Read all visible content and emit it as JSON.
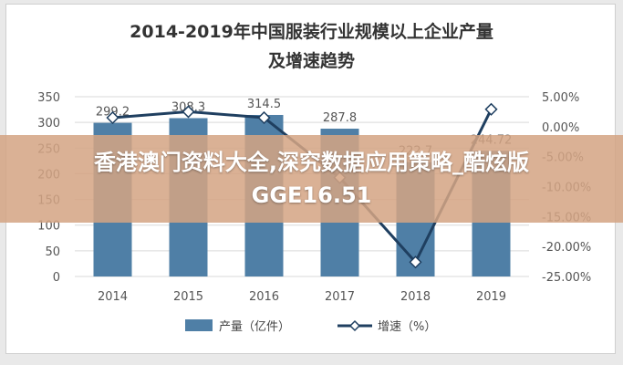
{
  "chart_data": {
    "type": "bar",
    "title_line1": "2014-2019年中国服装行业规模以上企业产量",
    "title_line2": "及增速趋势",
    "categories": [
      "2014",
      "2015",
      "2016",
      "2017",
      "2018",
      "2019"
    ],
    "series": [
      {
        "name": "产量（亿件）",
        "type": "bar",
        "axis": "left",
        "color": "#4f7fa6",
        "values": [
          299.2,
          308.3,
          314.5,
          287.8,
          222.7,
          244.72
        ],
        "labels": [
          "299.2",
          "308.3",
          "314.5",
          "287.8",
          "222.7",
          "244.72"
        ]
      },
      {
        "name": "增速（%）",
        "type": "line",
        "axis": "right",
        "color": "#1f3f60",
        "values": [
          1.5,
          2.5,
          1.5,
          -8.5,
          -22.6,
          2.9
        ]
      }
    ],
    "left_axis": {
      "ticks": [
        0,
        50,
        100,
        150,
        200,
        250,
        300,
        350
      ],
      "ylim": [
        0,
        350
      ]
    },
    "right_axis": {
      "ticks": [
        "5.00%",
        "0.00%",
        "-5.00%",
        "-10.00%",
        "-15.00%",
        "-20.00%",
        "-25.00%"
      ],
      "values": [
        5,
        0,
        -5,
        -10,
        -15,
        -20,
        -25
      ],
      "ylim": [
        -25,
        5
      ]
    },
    "legend_position": "bottom",
    "grid": true
  },
  "overlay": {
    "line1": "香港澳门资料大全,深究数据应用策略_酷炫版",
    "line2": "GGE16.51"
  }
}
